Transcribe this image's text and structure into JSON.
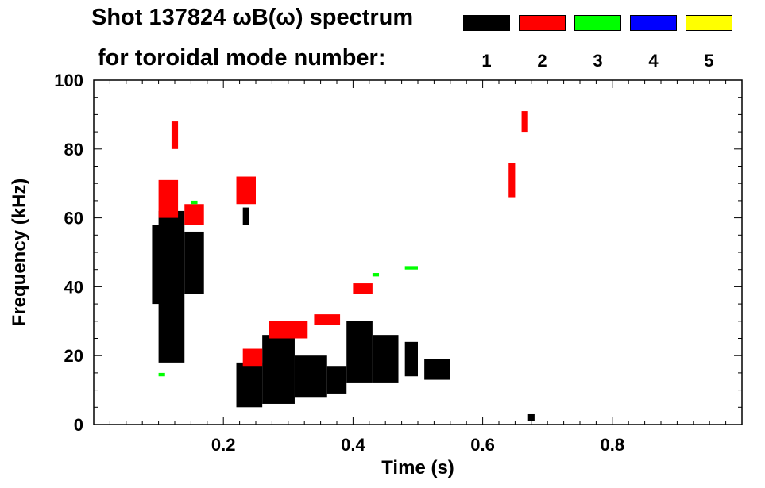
{
  "header": {
    "title_line_1": "Shot 137824 ωB(ω) spectrum",
    "title_line_2": "for toroidal mode number:"
  },
  "legend": [
    {
      "mode": "1",
      "color": "#000000"
    },
    {
      "mode": "2",
      "color": "#ff0000"
    },
    {
      "mode": "3",
      "color": "#00ff00"
    },
    {
      "mode": "4",
      "color": "#0000ff"
    },
    {
      "mode": "5",
      "color": "#ffff00"
    }
  ],
  "chart_data": {
    "type": "heatmap",
    "title": "Shot 137824 ωB(ω) spectrum for toroidal mode number",
    "xlabel": "Time (s)",
    "ylabel": "Frequency (kHz)",
    "xlim": [
      0.0,
      1.0
    ],
    "ylim": [
      0,
      100
    ],
    "x_ticks": [
      0.2,
      0.4,
      0.6,
      0.8
    ],
    "x_tick_labels": [
      "0.2",
      "0.4",
      "0.6",
      "0.8"
    ],
    "y_ticks": [
      0,
      20,
      40,
      60,
      80,
      100
    ],
    "y_tick_labels": [
      "0",
      "20",
      "40",
      "60",
      "80",
      "100"
    ],
    "series": [
      {
        "name": "n=1",
        "color": "#000000",
        "regions": [
          {
            "t": [
              0.1,
              0.14
            ],
            "f": [
              18,
              62
            ]
          },
          {
            "t": [
              0.09,
              0.11
            ],
            "f": [
              35,
              58
            ]
          },
          {
            "t": [
              0.14,
              0.17
            ],
            "f": [
              38,
              56
            ]
          },
          {
            "t": [
              0.22,
              0.26
            ],
            "f": [
              5,
              18
            ]
          },
          {
            "t": [
              0.26,
              0.31
            ],
            "f": [
              6,
              26
            ]
          },
          {
            "t": [
              0.31,
              0.36
            ],
            "f": [
              8,
              20
            ]
          },
          {
            "t": [
              0.36,
              0.39
            ],
            "f": [
              9,
              17
            ]
          },
          {
            "t": [
              0.39,
              0.43
            ],
            "f": [
              12,
              30
            ]
          },
          {
            "t": [
              0.43,
              0.47
            ],
            "f": [
              12,
              26
            ]
          },
          {
            "t": [
              0.48,
              0.5
            ],
            "f": [
              14,
              24
            ]
          },
          {
            "t": [
              0.51,
              0.55
            ],
            "f": [
              13,
              19
            ]
          },
          {
            "t": [
              0.23,
              0.24
            ],
            "f": [
              58,
              63
            ]
          },
          {
            "t": [
              0.67,
              0.68
            ],
            "f": [
              1,
              3
            ]
          }
        ]
      },
      {
        "name": "n=2",
        "color": "#ff0000",
        "regions": [
          {
            "t": [
              0.1,
              0.13
            ],
            "f": [
              60,
              71
            ]
          },
          {
            "t": [
              0.14,
              0.17
            ],
            "f": [
              58,
              64
            ]
          },
          {
            "t": [
              0.22,
              0.25
            ],
            "f": [
              64,
              72
            ]
          },
          {
            "t": [
              0.23,
              0.26
            ],
            "f": [
              17,
              22
            ]
          },
          {
            "t": [
              0.27,
              0.33
            ],
            "f": [
              25,
              30
            ]
          },
          {
            "t": [
              0.34,
              0.38
            ],
            "f": [
              29,
              32
            ]
          },
          {
            "t": [
              0.4,
              0.43
            ],
            "f": [
              38,
              41
            ]
          },
          {
            "t": [
              0.64,
              0.65
            ],
            "f": [
              66,
              76
            ]
          },
          {
            "t": [
              0.66,
              0.67
            ],
            "f": [
              85,
              91
            ]
          },
          {
            "t": [
              0.12,
              0.13
            ],
            "f": [
              80,
              88
            ]
          }
        ]
      },
      {
        "name": "n=3",
        "color": "#00ff00",
        "regions": [
          {
            "t": [
              0.15,
              0.16
            ],
            "f": [
              64,
              65
            ]
          },
          {
            "t": [
              0.48,
              0.5
            ],
            "f": [
              45,
              46
            ]
          },
          {
            "t": [
              0.43,
              0.44
            ],
            "f": [
              43,
              44
            ]
          },
          {
            "t": [
              0.1,
              0.11
            ],
            "f": [
              14,
              15
            ]
          }
        ]
      },
      {
        "name": "n=4",
        "color": "#0000ff",
        "regions": []
      },
      {
        "name": "n=5",
        "color": "#ffff00",
        "regions": []
      }
    ]
  }
}
